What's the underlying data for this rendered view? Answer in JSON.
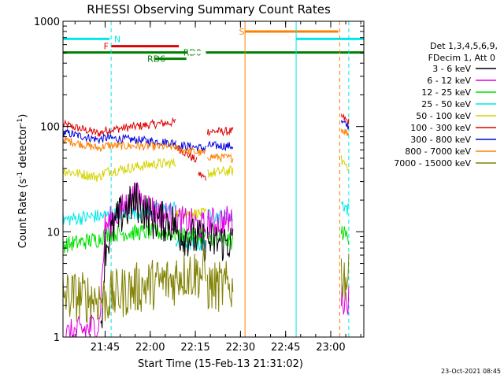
{
  "chart_data": {
    "type": "line",
    "title": "RHESSI Observing Summary Count Rates",
    "xlabel": "Start Time (15-Feb-13 21:31:02)",
    "ylabel_main": "Count Rate (s",
    "ylabel_sup1": "-1",
    "ylabel_mid": " detector",
    "ylabel_sup2": "-1",
    "ylabel_end": ")",
    "timestamp": "23-Oct-2021 08:45",
    "y_scale": "log",
    "ylim": [
      1,
      1000
    ],
    "xlim_minutes": [
      0,
      100
    ],
    "x_ticks": [
      {
        "label": "21:45",
        "t": 14
      },
      {
        "label": "22:00",
        "t": 29
      },
      {
        "label": "22:15",
        "t": 44
      },
      {
        "label": "22:30",
        "t": 59
      },
      {
        "label": "22:45",
        "t": 74
      },
      {
        "label": "23:00",
        "t": 89
      }
    ],
    "y_ticks": [
      {
        "label": "1",
        "v": 1
      },
      {
        "label": "10",
        "v": 10
      },
      {
        "label": "100",
        "v": 100
      },
      {
        "label": "1000",
        "v": 1000
      }
    ],
    "legend": {
      "header1": "Det 1,3,4,5,6,9,",
      "header2": "FDecim 1, Att 0",
      "items": [
        {
          "label": "3 - 6 keV",
          "color": "#000000"
        },
        {
          "label": "6 - 12 keV",
          "color": "#e000e0"
        },
        {
          "label": "12 - 25 keV",
          "color": "#00e000"
        },
        {
          "label": "25 - 50 keV",
          "color": "#00e8e8"
        },
        {
          "label": "50 - 100 keV",
          "color": "#d4d400"
        },
        {
          "label": "100 - 300 keV",
          "color": "#e00000"
        },
        {
          "label": "300 - 800 keV",
          "color": "#0000e0"
        },
        {
          "label": "800 - 7000 keV",
          "color": "#ff8000"
        },
        {
          "label": "7000 - 15000 keV",
          "color": "#808000"
        }
      ]
    },
    "flags": [
      {
        "label": "N",
        "color": "#00e8e8",
        "t0": 0,
        "t1": 15.5,
        "v": 680,
        "label_t": 17
      },
      {
        "label": "F",
        "color": "#e00000",
        "t0": 16,
        "t1": 38.5,
        "v": 580,
        "label_t": 13.5
      },
      {
        "label": "S",
        "color": "#ff8000",
        "t0": 60.5,
        "t1": 91.5,
        "v": 800,
        "label_t": 58.5
      },
      {
        "label": "",
        "color": "#00e8e8",
        "t0": 77.5,
        "t1": 100,
        "v": 680,
        "label_t": 0
      },
      {
        "label": "RD0",
        "color": "#008000",
        "t0": 0,
        "t1": 100,
        "v": 505,
        "label_t": 40
      },
      {
        "label": "RD6",
        "color": "#008000",
        "t0": 30.5,
        "t1": 41,
        "v": 440,
        "label_t": 28
      }
    ],
    "flag_gaps": [
      {
        "color": "#008000",
        "t0": 41.5,
        "t1": 47.5,
        "v": 505
      }
    ],
    "vlines": [
      {
        "t": 0,
        "color": "#00e8e8",
        "dash": false
      },
      {
        "t": 16,
        "color": "#00e8e8",
        "dash": true
      },
      {
        "t": 60.5,
        "color": "#ff8000",
        "dash": false
      },
      {
        "t": 77.5,
        "color": "#00e8e8",
        "dash": false
      },
      {
        "t": 92,
        "color": "#ff8000",
        "dash": true
      },
      {
        "t": 95,
        "color": "#00e8e8",
        "dash": true
      }
    ],
    "series": [
      {
        "name": "100 - 300 keV",
        "color": "#e00000",
        "noise": 0.04,
        "segments": [
          [
            [
              0,
              105
            ],
            [
              12,
              86
            ],
            [
              14,
              92
            ],
            [
              30,
              105
            ],
            [
              37.5,
              110
            ]
          ],
          [
            [
              37.5,
              65
            ],
            [
              44.5,
              47
            ]
          ],
          [
            [
              45,
              36
            ],
            [
              47.5,
              32
            ]
          ],
          [
            [
              48,
              90
            ],
            [
              56.5,
              90
            ]
          ],
          [
            [
              92.5,
              125
            ],
            [
              95,
              110
            ]
          ]
        ]
      },
      {
        "name": "300 - 800 keV",
        "color": "#0000e0",
        "noise": 0.04,
        "segments": [
          [
            [
              0,
              88
            ],
            [
              12,
              75
            ],
            [
              14,
              78
            ],
            [
              20,
              76
            ],
            [
              37.5,
              70
            ]
          ],
          [
            [
              37.5,
              67
            ],
            [
              47.5,
              62
            ]
          ],
          [
            [
              48,
              66
            ],
            [
              56.5,
              65
            ]
          ],
          [
            [
              92.5,
              110
            ],
            [
              95,
              100
            ]
          ]
        ]
      },
      {
        "name": "800 - 7000 keV",
        "color": "#ff8000",
        "noise": 0.04,
        "segments": [
          [
            [
              0,
              75
            ],
            [
              12,
              62
            ],
            [
              14,
              66
            ],
            [
              37.5,
              64
            ]
          ],
          [
            [
              37.5,
              62
            ],
            [
              47.5,
              55
            ]
          ],
          [
            [
              48,
              52
            ],
            [
              56.5,
              50
            ]
          ],
          [
            [
              92.5,
              95
            ],
            [
              95,
              85
            ]
          ]
        ]
      },
      {
        "name": "50 - 100 keV",
        "color": "#d4d400",
        "noise": 0.05,
        "segments": [
          [
            [
              0,
              38
            ],
            [
              12,
              33
            ],
            [
              14,
              37
            ],
            [
              30,
              44
            ],
            [
              37.5,
              45
            ]
          ],
          [
            [
              37.5,
              15
            ],
            [
              47.5,
              15
            ]
          ],
          [
            [
              48,
              36
            ],
            [
              56.5,
              38
            ]
          ],
          [
            [
              92.5,
              48
            ],
            [
              95,
              42
            ]
          ]
        ]
      },
      {
        "name": "25 - 50 keV",
        "color": "#00e8e8",
        "noise": 0.07,
        "segments": [
          [
            [
              0,
              13
            ],
            [
              10,
              14
            ],
            [
              12,
              14
            ],
            [
              30,
              16
            ],
            [
              37.5,
              17
            ]
          ],
          [
            [
              37.5,
              8
            ],
            [
              47.5,
              7.5
            ]
          ],
          [
            [
              48,
              14
            ],
            [
              56.5,
              14
            ]
          ],
          [
            [
              92.5,
              19
            ],
            [
              95,
              16
            ]
          ]
        ]
      },
      {
        "name": "12 - 25 keV",
        "color": "#00e000",
        "noise": 0.08,
        "segments": [
          [
            [
              0,
              7.5
            ],
            [
              12,
              8.5
            ],
            [
              14,
              9.5
            ],
            [
              30,
              10
            ],
            [
              37.5,
              9.5
            ]
          ],
          [
            [
              37.5,
              9.5
            ],
            [
              47.5,
              9
            ]
          ],
          [
            [
              48,
              9
            ],
            [
              56.5,
              8
            ]
          ],
          [
            [
              92.5,
              10
            ],
            [
              95,
              9
            ]
          ]
        ]
      },
      {
        "name": "6 - 12 keV",
        "color": "#e000e0",
        "noise": 0.15,
        "segments": [
          [
            [
              0,
              1.0
            ],
            [
              12,
              1.3
            ],
            [
              14,
              11
            ],
            [
              20,
              17
            ],
            [
              24,
              22
            ],
            [
              30,
              16
            ],
            [
              37.5,
              13
            ]
          ],
          [
            [
              37.5,
              13
            ],
            [
              47.5,
              11
            ]
          ],
          [
            [
              48,
              12
            ],
            [
              56.5,
              13
            ]
          ],
          [
            [
              92.5,
              2.3
            ],
            [
              95,
              2.3
            ]
          ]
        ]
      },
      {
        "name": "3 - 6 keV",
        "color": "#000000",
        "noise": 0.2,
        "segments": [
          [
            [
              12.5,
              1
            ],
            [
              14,
              7
            ],
            [
              18,
              13
            ],
            [
              24,
              20
            ],
            [
              30,
              13
            ],
            [
              37.5,
              12
            ]
          ],
          [
            [
              37.5,
              10
            ],
            [
              42,
              9
            ],
            [
              47.5,
              8
            ]
          ],
          [
            [
              48,
              8
            ],
            [
              56.5,
              8
            ]
          ]
        ]
      },
      {
        "name": "7000 - 15000 keV",
        "color": "#808000",
        "noise": 0.25,
        "segments": [
          [
            [
              0,
              2.5
            ],
            [
              14,
              2.3
            ],
            [
              22,
              2.8
            ],
            [
              30,
              3.2
            ],
            [
              37.5,
              3.5
            ]
          ],
          [
            [
              37.5,
              4
            ],
            [
              47.5,
              4
            ]
          ],
          [
            [
              48,
              3
            ],
            [
              56.5,
              3
            ]
          ],
          [
            [
              92.5,
              4
            ],
            [
              95,
              3.5
            ]
          ]
        ]
      }
    ]
  }
}
